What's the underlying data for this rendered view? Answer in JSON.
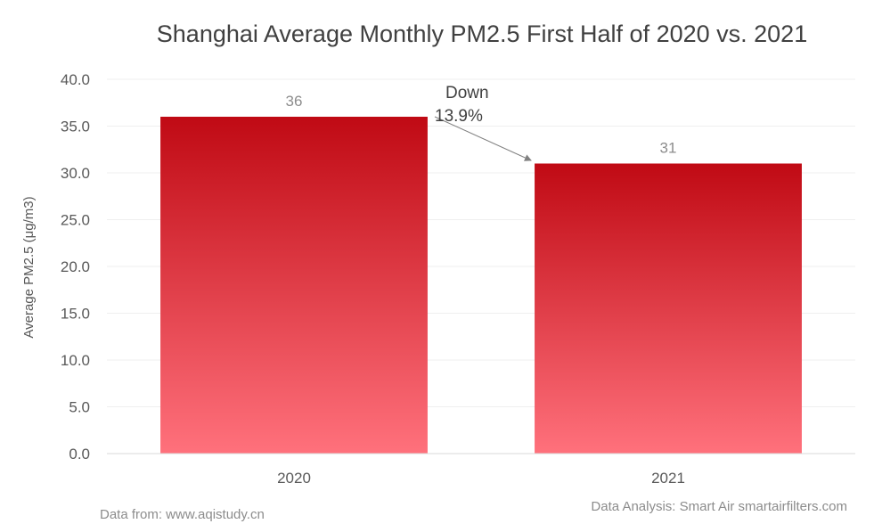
{
  "chart_data": {
    "type": "bar",
    "title": "Shanghai Average Monthly PM2.5 First Half of 2020 vs. 2021",
    "xlabel": "",
    "ylabel": "Average PM2.5 (μg/m3)",
    "categories": [
      "2020",
      "2021"
    ],
    "values": [
      36,
      31
    ],
    "data_labels": [
      "36",
      "31"
    ],
    "ylim": [
      0,
      40
    ],
    "yticks": [
      "0.0",
      "5.0",
      "10.0",
      "15.0",
      "20.0",
      "25.0",
      "30.0",
      "35.0",
      "40.0"
    ],
    "grid": true,
    "legend": "none",
    "bar_color_top": "#c00a14",
    "bar_color_bottom": "#ff717c",
    "annotation": {
      "line1": "Down",
      "line2": "13.9%"
    }
  },
  "footer": {
    "source": "Data from: www.aqistudy.cn",
    "analysis": "Data Analysis: Smart Air smartairfilters.com"
  }
}
